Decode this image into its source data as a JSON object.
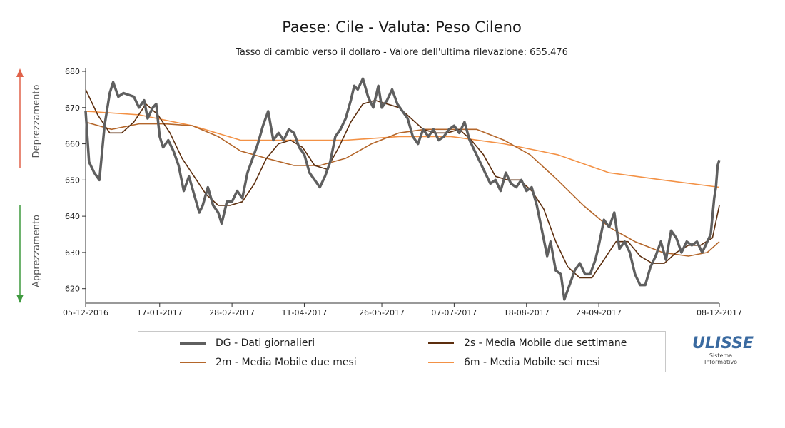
{
  "chart_data": {
    "type": "line",
    "title": "Paese: Cile - Valuta: Peso Cileno",
    "subtitle": "Tasso di cambio verso il dollaro - Valore dell'ultima rilevazione: 655.476",
    "ylim": [
      616,
      680
    ],
    "yticks": [
      620,
      630,
      640,
      650,
      660,
      670,
      680
    ],
    "xlim": [
      "2016-12-05",
      "2017-12-08"
    ],
    "xticks": [
      {
        "date": "2016-12-05",
        "label": "05-12-2016"
      },
      {
        "date": "2017-01-17",
        "label": "17-01-2017"
      },
      {
        "date": "2017-02-28",
        "label": "28-02-2017"
      },
      {
        "date": "2017-04-11",
        "label": "11-04-2017"
      },
      {
        "date": "2017-05-26",
        "label": "26-05-2017"
      },
      {
        "date": "2017-07-07",
        "label": "07-07-2017"
      },
      {
        "date": "2017-08-18",
        "label": "18-08-2017"
      },
      {
        "date": "2017-09-29",
        "label": "29-09-2017"
      },
      {
        "date": "2017-12-08",
        "label": "08-12-2017"
      }
    ],
    "side_labels": {
      "up": "Deprezzamento",
      "down": "Apprezzamento"
    },
    "series": [
      {
        "key": "dg",
        "name": "DG - Dati giornalieri",
        "color": "#5f5f5f",
        "points": [
          [
            "2016-12-05",
            669
          ],
          [
            "2016-12-07",
            655
          ],
          [
            "2016-12-10",
            652
          ],
          [
            "2016-12-13",
            650
          ],
          [
            "2016-12-16",
            665
          ],
          [
            "2016-12-19",
            674
          ],
          [
            "2016-12-21",
            677
          ],
          [
            "2016-12-24",
            673
          ],
          [
            "2016-12-27",
            674
          ],
          [
            "2017-01-02",
            673
          ],
          [
            "2017-01-05",
            670
          ],
          [
            "2017-01-08",
            672
          ],
          [
            "2017-01-10",
            667
          ],
          [
            "2017-01-13",
            670
          ],
          [
            "2017-01-15",
            671
          ],
          [
            "2017-01-17",
            662
          ],
          [
            "2017-01-19",
            659
          ],
          [
            "2017-01-22",
            661
          ],
          [
            "2017-01-25",
            658
          ],
          [
            "2017-01-28",
            654
          ],
          [
            "2017-01-31",
            647
          ],
          [
            "2017-02-03",
            651
          ],
          [
            "2017-02-06",
            646
          ],
          [
            "2017-02-09",
            641
          ],
          [
            "2017-02-11",
            643
          ],
          [
            "2017-02-14",
            648
          ],
          [
            "2017-02-17",
            643
          ],
          [
            "2017-02-20",
            641
          ],
          [
            "2017-02-22",
            638
          ],
          [
            "2017-02-25",
            644
          ],
          [
            "2017-02-28",
            644
          ],
          [
            "2017-03-03",
            647
          ],
          [
            "2017-03-06",
            645
          ],
          [
            "2017-03-09",
            652
          ],
          [
            "2017-03-12",
            656
          ],
          [
            "2017-03-15",
            660
          ],
          [
            "2017-03-18",
            665
          ],
          [
            "2017-03-21",
            669
          ],
          [
            "2017-03-24",
            661
          ],
          [
            "2017-03-27",
            663
          ],
          [
            "2017-03-30",
            661
          ],
          [
            "2017-04-02",
            664
          ],
          [
            "2017-04-05",
            663
          ],
          [
            "2017-04-08",
            659
          ],
          [
            "2017-04-11",
            657
          ],
          [
            "2017-04-14",
            652
          ],
          [
            "2017-04-17",
            650
          ],
          [
            "2017-04-20",
            648
          ],
          [
            "2017-04-23",
            651
          ],
          [
            "2017-04-26",
            655
          ],
          [
            "2017-04-29",
            662
          ],
          [
            "2017-05-02",
            664
          ],
          [
            "2017-05-05",
            667
          ],
          [
            "2017-05-08",
            672
          ],
          [
            "2017-05-10",
            676
          ],
          [
            "2017-05-12",
            675
          ],
          [
            "2017-05-15",
            678
          ],
          [
            "2017-05-18",
            673
          ],
          [
            "2017-05-21",
            670
          ],
          [
            "2017-05-24",
            676
          ],
          [
            "2017-05-26",
            670
          ],
          [
            "2017-05-29",
            672
          ],
          [
            "2017-06-01",
            675
          ],
          [
            "2017-06-04",
            671
          ],
          [
            "2017-06-07",
            669
          ],
          [
            "2017-06-10",
            667
          ],
          [
            "2017-06-13",
            662
          ],
          [
            "2017-06-16",
            660
          ],
          [
            "2017-06-19",
            664
          ],
          [
            "2017-06-22",
            662
          ],
          [
            "2017-06-25",
            664
          ],
          [
            "2017-06-28",
            661
          ],
          [
            "2017-07-01",
            662
          ],
          [
            "2017-07-04",
            664
          ],
          [
            "2017-07-07",
            665
          ],
          [
            "2017-07-10",
            663
          ],
          [
            "2017-07-13",
            666
          ],
          [
            "2017-07-16",
            661
          ],
          [
            "2017-07-19",
            658
          ],
          [
            "2017-07-22",
            655
          ],
          [
            "2017-07-25",
            652
          ],
          [
            "2017-07-28",
            649
          ],
          [
            "2017-07-31",
            650
          ],
          [
            "2017-08-03",
            647
          ],
          [
            "2017-08-06",
            652
          ],
          [
            "2017-08-09",
            649
          ],
          [
            "2017-08-12",
            648
          ],
          [
            "2017-08-15",
            650
          ],
          [
            "2017-08-18",
            647
          ],
          [
            "2017-08-21",
            648
          ],
          [
            "2017-08-24",
            643
          ],
          [
            "2017-08-27",
            636
          ],
          [
            "2017-08-30",
            629
          ],
          [
            "2017-09-01",
            633
          ],
          [
            "2017-09-04",
            625
          ],
          [
            "2017-09-07",
            624
          ],
          [
            "2017-09-09",
            617
          ],
          [
            "2017-09-12",
            621
          ],
          [
            "2017-09-15",
            625
          ],
          [
            "2017-09-18",
            627
          ],
          [
            "2017-09-21",
            624
          ],
          [
            "2017-09-24",
            624
          ],
          [
            "2017-09-27",
            628
          ],
          [
            "2017-09-29",
            632
          ],
          [
            "2017-10-02",
            639
          ],
          [
            "2017-10-05",
            637
          ],
          [
            "2017-10-08",
            641
          ],
          [
            "2017-10-11",
            631
          ],
          [
            "2017-10-14",
            633
          ],
          [
            "2017-10-17",
            630
          ],
          [
            "2017-10-20",
            624
          ],
          [
            "2017-10-23",
            621
          ],
          [
            "2017-10-26",
            621
          ],
          [
            "2017-10-29",
            626
          ],
          [
            "2017-11-01",
            629
          ],
          [
            "2017-11-04",
            633
          ],
          [
            "2017-11-07",
            628
          ],
          [
            "2017-11-10",
            636
          ],
          [
            "2017-11-13",
            634
          ],
          [
            "2017-11-16",
            630
          ],
          [
            "2017-11-19",
            633
          ],
          [
            "2017-11-22",
            632
          ],
          [
            "2017-11-25",
            633
          ],
          [
            "2017-11-28",
            630
          ],
          [
            "2017-12-01",
            633
          ],
          [
            "2017-12-03",
            635
          ],
          [
            "2017-12-05",
            645
          ],
          [
            "2017-12-06",
            648
          ],
          [
            "2017-12-07",
            654
          ],
          [
            "2017-12-08",
            655.5
          ]
        ]
      },
      {
        "key": "s2",
        "name": "2s - Media Mobile due settimane",
        "color": "#5c2e0e",
        "points": [
          [
            "2016-12-05",
            675
          ],
          [
            "2016-12-12",
            668
          ],
          [
            "2016-12-19",
            663
          ],
          [
            "2016-12-26",
            663
          ],
          [
            "2017-01-02",
            666
          ],
          [
            "2017-01-09",
            671
          ],
          [
            "2017-01-16",
            668
          ],
          [
            "2017-01-23",
            663
          ],
          [
            "2017-01-30",
            656
          ],
          [
            "2017-02-06",
            651
          ],
          [
            "2017-02-13",
            646
          ],
          [
            "2017-02-20",
            643
          ],
          [
            "2017-02-27",
            643
          ],
          [
            "2017-03-06",
            644
          ],
          [
            "2017-03-13",
            649
          ],
          [
            "2017-03-20",
            656
          ],
          [
            "2017-03-27",
            660
          ],
          [
            "2017-04-03",
            661
          ],
          [
            "2017-04-10",
            659
          ],
          [
            "2017-04-17",
            654
          ],
          [
            "2017-04-24",
            653
          ],
          [
            "2017-05-01",
            659
          ],
          [
            "2017-05-08",
            666
          ],
          [
            "2017-05-15",
            671
          ],
          [
            "2017-05-22",
            672
          ],
          [
            "2017-05-29",
            671
          ],
          [
            "2017-06-05",
            670
          ],
          [
            "2017-06-12",
            667
          ],
          [
            "2017-06-19",
            664
          ],
          [
            "2017-06-26",
            663
          ],
          [
            "2017-07-03",
            663
          ],
          [
            "2017-07-10",
            664
          ],
          [
            "2017-07-17",
            661
          ],
          [
            "2017-07-24",
            657
          ],
          [
            "2017-07-31",
            651
          ],
          [
            "2017-08-07",
            650
          ],
          [
            "2017-08-14",
            650
          ],
          [
            "2017-08-21",
            647
          ],
          [
            "2017-08-28",
            642
          ],
          [
            "2017-09-04",
            633
          ],
          [
            "2017-09-11",
            626
          ],
          [
            "2017-09-18",
            623
          ],
          [
            "2017-09-25",
            623
          ],
          [
            "2017-10-02",
            628
          ],
          [
            "2017-10-09",
            633
          ],
          [
            "2017-10-16",
            633
          ],
          [
            "2017-10-23",
            629
          ],
          [
            "2017-10-30",
            627
          ],
          [
            "2017-11-06",
            627
          ],
          [
            "2017-11-13",
            630
          ],
          [
            "2017-11-20",
            632
          ],
          [
            "2017-11-27",
            632
          ],
          [
            "2017-12-04",
            634
          ],
          [
            "2017-12-08",
            643
          ]
        ]
      },
      {
        "key": "m2",
        "name": "2m - Media Mobile due mesi",
        "color": "#b4662a",
        "points": [
          [
            "2016-12-05",
            666
          ],
          [
            "2016-12-20",
            664
          ],
          [
            "2017-01-05",
            665.5
          ],
          [
            "2017-01-20",
            665.5
          ],
          [
            "2017-02-05",
            665
          ],
          [
            "2017-02-20",
            662
          ],
          [
            "2017-03-05",
            658
          ],
          [
            "2017-03-20",
            656
          ],
          [
            "2017-04-05",
            654
          ],
          [
            "2017-04-20",
            654
          ],
          [
            "2017-05-05",
            656
          ],
          [
            "2017-05-20",
            660
          ],
          [
            "2017-06-05",
            663
          ],
          [
            "2017-06-20",
            664
          ],
          [
            "2017-07-05",
            664
          ],
          [
            "2017-07-20",
            664
          ],
          [
            "2017-08-05",
            661
          ],
          [
            "2017-08-20",
            657
          ],
          [
            "2017-09-05",
            650
          ],
          [
            "2017-09-20",
            643
          ],
          [
            "2017-10-05",
            637
          ],
          [
            "2017-10-20",
            633
          ],
          [
            "2017-11-05",
            630
          ],
          [
            "2017-11-20",
            629
          ],
          [
            "2017-12-01",
            630
          ],
          [
            "2017-12-08",
            633
          ]
        ]
      },
      {
        "key": "m6",
        "name": "6m - Media Mobile sei mesi",
        "color": "#f39145",
        "points": [
          [
            "2016-12-05",
            669
          ],
          [
            "2017-01-05",
            668
          ],
          [
            "2017-02-05",
            665
          ],
          [
            "2017-03-05",
            661
          ],
          [
            "2017-04-05",
            661
          ],
          [
            "2017-05-05",
            661
          ],
          [
            "2017-06-05",
            662
          ],
          [
            "2017-07-05",
            662
          ],
          [
            "2017-08-05",
            660
          ],
          [
            "2017-09-05",
            657
          ],
          [
            "2017-10-05",
            652
          ],
          [
            "2017-11-05",
            650
          ],
          [
            "2017-12-08",
            648
          ]
        ]
      }
    ]
  },
  "legend": [
    {
      "key": "dg",
      "label": "DG - Dati giornalieri"
    },
    {
      "key": "s2",
      "label": "2s - Media Mobile due settimane"
    },
    {
      "key": "m2",
      "label": "2m - Media Mobile due mesi"
    },
    {
      "key": "m6",
      "label": "6m - Media Mobile sei mesi"
    }
  ],
  "logo": {
    "word": "ULISSE",
    "line1": "Sistema",
    "line2": "Informativo"
  }
}
